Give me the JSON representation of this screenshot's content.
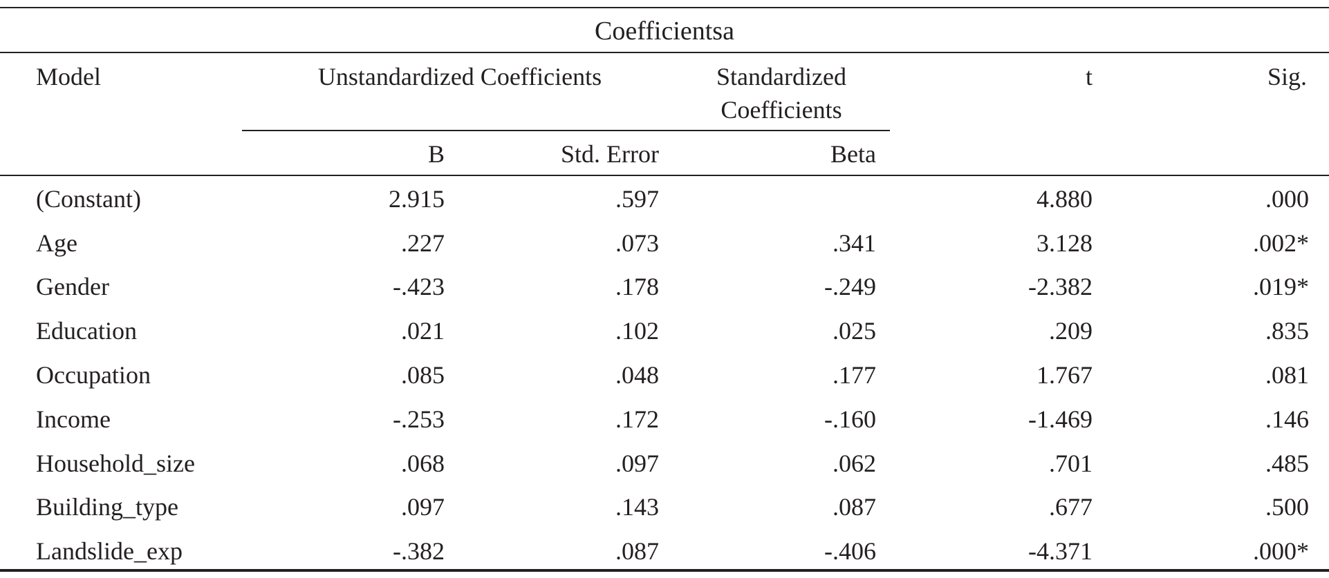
{
  "table": {
    "title": "Coefficientsa",
    "headers": {
      "model": "Model",
      "unstandardized": "Unstandardized Coefficients",
      "standardized_line1": "Standardized",
      "standardized_line2": "Coefficients",
      "t": "t",
      "sig": "Sig.",
      "b": "B",
      "std_error": "Std. Error",
      "beta": "Beta"
    },
    "rows": [
      {
        "label": "(Constant)",
        "b": "2.915",
        "se": ".597",
        "beta": "",
        "t": "4.880",
        "sig": ".000"
      },
      {
        "label": "Age",
        "b": ".227",
        "se": ".073",
        "beta": ".341",
        "t": "3.128",
        "sig": ".002*"
      },
      {
        "label": "Gender",
        "b": "-.423",
        "se": ".178",
        "beta": "-.249",
        "t": "-2.382",
        "sig": ".019*"
      },
      {
        "label": "Education",
        "b": ".021",
        "se": ".102",
        "beta": ".025",
        "t": ".209",
        "sig": ".835"
      },
      {
        "label": "Occupation",
        "b": ".085",
        "se": ".048",
        "beta": ".177",
        "t": "1.767",
        "sig": ".081"
      },
      {
        "label": "Income",
        "b": "-.253",
        "se": ".172",
        "beta": "-.160",
        "t": "-1.469",
        "sig": ".146"
      },
      {
        "label": "Household_size",
        "b": ".068",
        "se": ".097",
        "beta": ".062",
        "t": ".701",
        "sig": ".485"
      },
      {
        "label": "Building_type",
        "b": ".097",
        "se": ".143",
        "beta": ".087",
        "t": ".677",
        "sig": ".500"
      },
      {
        "label": "Landslide_exp",
        "b": "-.382",
        "se": ".087",
        "beta": "-.406",
        "t": "-4.371",
        "sig": ".000*"
      }
    ]
  }
}
